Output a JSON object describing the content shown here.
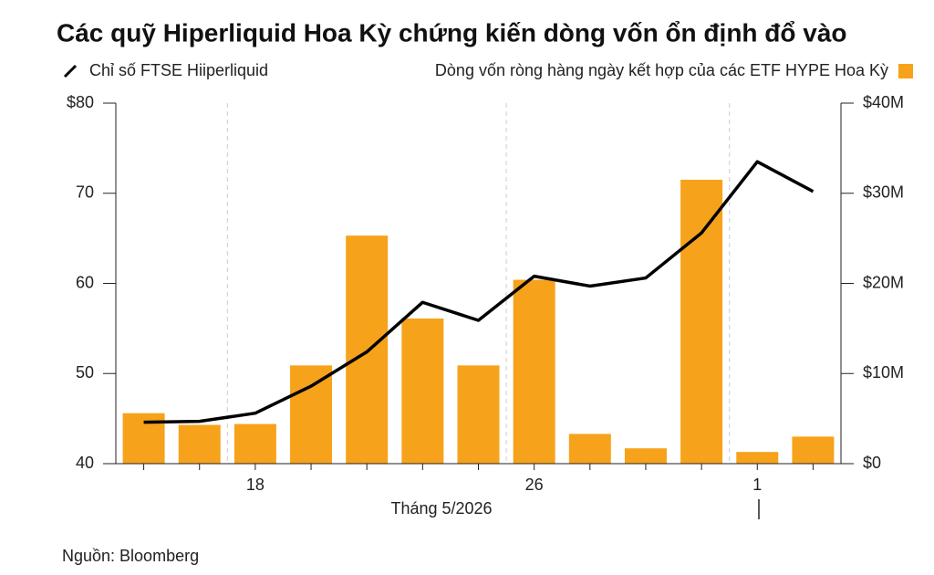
{
  "chart_data": {
    "type": "combo",
    "title": "Các quỹ Hiperliquid Hoa Kỳ chứng kiến dòng vốn ổn định đổ vào",
    "xlabel": "Tháng 5/2026",
    "source": "Nguồn: Bloomberg",
    "categories": [
      null,
      null,
      "18",
      null,
      null,
      null,
      null,
      "26",
      null,
      null,
      null,
      "1",
      null
    ],
    "series": [
      {
        "name": "Chỉ số FTSE Hiiperliquid",
        "type": "line",
        "color": "#000000",
        "values": [
          44.6,
          44.7,
          45.6,
          48.6,
          52.4,
          57.9,
          55.9,
          60.8,
          59.7,
          60.6,
          65.6,
          73.5,
          70.2
        ]
      },
      {
        "name": "Dòng vốn ròng hàng ngày kết hợp của các ETF HYPE Hoa Kỳ",
        "type": "bar",
        "color": "#f7a21b",
        "axis": "y2",
        "values": [
          5600000,
          4300000,
          4400000,
          10900000,
          25300000,
          16100000,
          10900000,
          20400000,
          3300000,
          1700000,
          31500000,
          1300000,
          3000000
        ]
      }
    ],
    "ylim": [
      40,
      80
    ],
    "yticks": [
      40,
      50,
      60,
      70,
      {
        "value": 80,
        "label": "$80"
      }
    ],
    "y2lim": [
      0,
      40000000
    ],
    "y2ticks": [
      {
        "value": 0,
        "label": "$0"
      },
      {
        "value": 10000000,
        "label": "$10M"
      },
      {
        "value": 20000000,
        "label": "$20M"
      },
      {
        "value": 30000000,
        "label": "$30M"
      },
      {
        "value": 40000000,
        "label": "$40M"
      }
    ]
  }
}
